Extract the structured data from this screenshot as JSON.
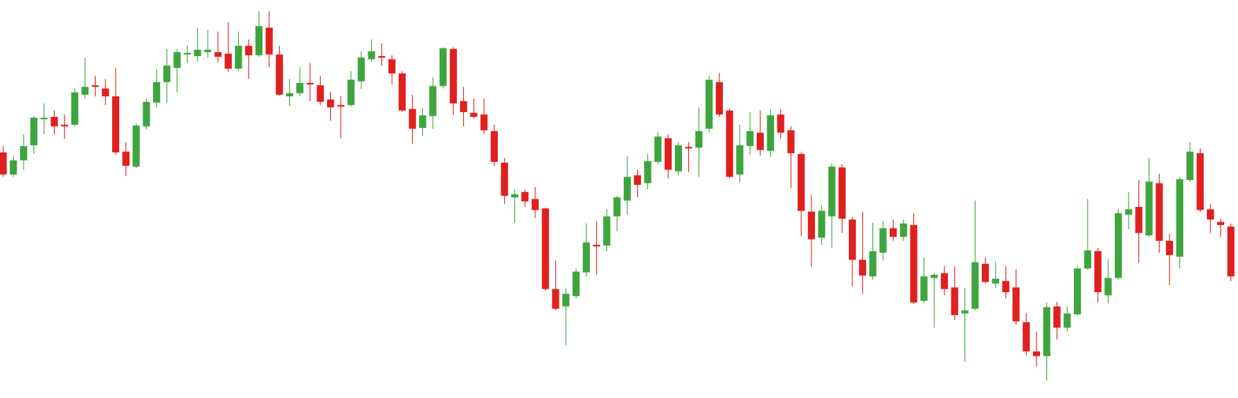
{
  "chart_data": {
    "type": "candlestick",
    "up_color": "#3ea53e",
    "down_color": "#e0201f",
    "ylim": [
      0,
      504
    ],
    "open": [
      311,
      283,
      301,
      320,
      353,
      356,
      346,
      346,
      384,
      396,
      392,
      382,
      312,
      293,
      344,
      374,
      400,
      418,
      435,
      433,
      438,
      438,
      436,
      417,
      446,
      434,
      469,
      435,
      382,
      386,
      399,
      396,
      378,
      371,
      371,
      401,
      429,
      433,
      429,
      411,
      366,
      342,
      357,
      395,
      442,
      376,
      361,
      359,
      338,
      298,
      254,
      261,
      252,
      240,
      138,
      116,
      129,
      159,
      194,
      193,
      230,
      250,
      282,
      272,
      299,
      329,
      287,
      318,
      317,
      341,
      400,
      364,
      283,
      319,
      336,
      313,
      359,
      339,
      309,
      236,
      203,
      230,
      292,
      226,
      175,
      154,
      184,
      215,
      204,
      219,
      123,
      152,
      158,
      140,
      107,
      113,
      170,
      145,
      148,
      140,
      96,
      59,
      53,
      116,
      89,
      106,
      164,
      186,
      130,
      152,
      232,
      242,
      206,
      272,
      199,
      179,
      276,
      310,
      239,
      223,
      217
    ],
    "high": [
      319,
      307,
      334,
      357,
      373,
      364,
      359,
      392,
      431,
      408,
      404,
      418,
      324,
      347,
      379,
      416,
      442,
      442,
      446,
      469,
      466,
      464,
      476,
      464,
      454,
      490,
      490,
      446,
      404,
      419,
      424,
      408,
      388,
      382,
      414,
      439,
      454,
      449,
      434,
      414,
      384,
      367,
      406,
      444,
      444,
      394,
      379,
      379,
      346,
      304,
      264,
      264,
      267,
      241,
      174,
      139,
      164,
      221,
      224,
      239,
      256,
      306,
      289,
      309,
      337,
      334,
      324,
      324,
      368,
      408,
      412,
      366,
      346,
      362,
      364,
      366,
      366,
      344,
      311,
      257,
      244,
      297,
      296,
      229,
      236,
      222,
      224,
      226,
      226,
      234,
      178,
      158,
      167,
      167,
      139,
      250,
      178,
      173,
      167,
      163,
      108,
      84,
      121,
      122,
      116,
      167,
      252,
      190,
      176,
      239,
      261,
      276,
      304,
      284,
      208,
      280,
      324,
      316,
      246,
      227,
      221
    ],
    "low": [
      280,
      280,
      289,
      309,
      334,
      334,
      328,
      344,
      379,
      382,
      371,
      308,
      281,
      291,
      340,
      368,
      374,
      387,
      424,
      426,
      431,
      425,
      413,
      414,
      404,
      432,
      419,
      383,
      370,
      382,
      376,
      371,
      351,
      329,
      369,
      391,
      426,
      421,
      397,
      362,
      322,
      332,
      341,
      392,
      358,
      344,
      354,
      334,
      294,
      246,
      222,
      242,
      228,
      136,
      111,
      67,
      126,
      154,
      156,
      186,
      211,
      232,
      254,
      264,
      296,
      278,
      282,
      286,
      280,
      336,
      356,
      278,
      273,
      308,
      307,
      305,
      329,
      266,
      205,
      166,
      194,
      190,
      209,
      141,
      132,
      150,
      174,
      199,
      199,
      119,
      120,
      89,
      130,
      99,
      46,
      111,
      145,
      139,
      126,
      93,
      54,
      40,
      22,
      74,
      84,
      104,
      162,
      121,
      120,
      150,
      214,
      171,
      204,
      184,
      143,
      164,
      274,
      236,
      209,
      204,
      148
    ],
    "close": [
      283,
      301,
      319,
      355,
      355,
      344,
      344,
      387,
      394,
      394,
      382,
      311,
      294,
      345,
      375,
      400,
      421,
      438,
      437,
      441,
      441,
      432,
      417,
      446,
      434,
      471,
      435,
      384,
      386,
      399,
      397,
      375,
      368,
      369,
      403,
      431,
      439,
      431,
      411,
      364,
      341,
      358,
      395,
      443,
      373,
      362,
      356,
      339,
      299,
      256,
      258,
      249,
      238,
      138,
      113,
      132,
      160,
      197,
      192,
      230,
      254,
      280,
      270,
      300,
      331,
      289,
      320,
      316,
      338,
      403,
      359,
      280,
      320,
      338,
      314,
      358,
      336,
      310,
      237,
      201,
      237,
      293,
      227,
      175,
      155,
      186,
      215,
      204,
      221,
      121,
      154,
      156,
      138,
      105,
      111,
      172,
      147,
      151,
      134,
      97,
      59,
      53,
      115,
      89,
      107,
      164,
      187,
      134,
      152,
      234,
      239,
      209,
      274,
      199,
      181,
      277,
      312,
      238,
      226,
      219,
      154
    ]
  }
}
